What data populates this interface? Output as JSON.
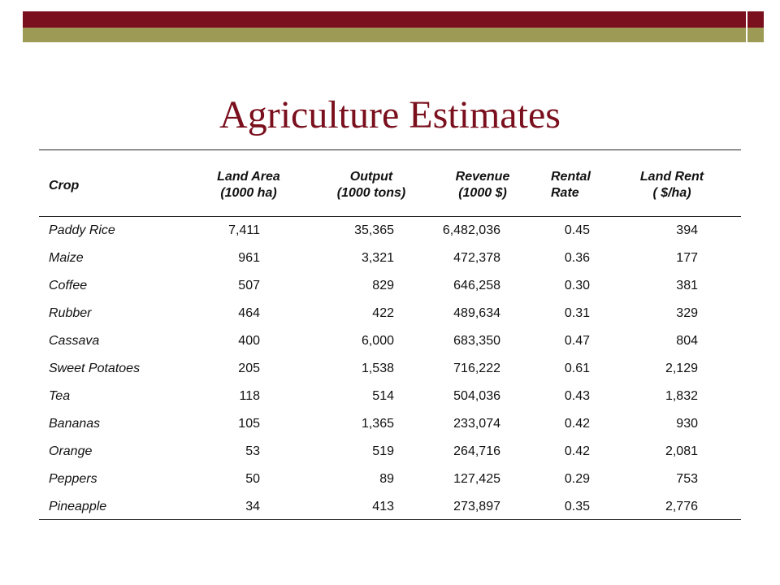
{
  "slide": {
    "title": "Agriculture Estimates",
    "colors": {
      "maroon": "#7a0f1d",
      "olive": "#9c9a55"
    }
  },
  "table": {
    "headers": {
      "crop": "Crop",
      "land_area": [
        "Land Area",
        "(1000 ha)"
      ],
      "output": [
        "Output",
        "(1000 tons)"
      ],
      "revenue": [
        "Revenue",
        "(1000 $)"
      ],
      "rental_rate": [
        "Rental",
        "Rate"
      ],
      "land_rent": [
        "Land Rent",
        "( $/ha)"
      ]
    },
    "rows": [
      {
        "crop": "Paddy Rice",
        "area": "7,411",
        "output": "35,365",
        "revenue": "6,482,036",
        "rate": "0.45",
        "rent": "394"
      },
      {
        "crop": "Maize",
        "area": "961",
        "output": "3,321",
        "revenue": "472,378",
        "rate": "0.36",
        "rent": "177"
      },
      {
        "crop": "Coffee",
        "area": "507",
        "output": "829",
        "revenue": "646,258",
        "rate": "0.30",
        "rent": "381"
      },
      {
        "crop": "Rubber",
        "area": "464",
        "output": "422",
        "revenue": "489,634",
        "rate": "0.31",
        "rent": "329"
      },
      {
        "crop": "Cassava",
        "area": "400",
        "output": "6,000",
        "revenue": "683,350",
        "rate": "0.47",
        "rent": "804"
      },
      {
        "crop": "Sweet Potatoes",
        "area": "205",
        "output": "1,538",
        "revenue": "716,222",
        "rate": "0.61",
        "rent": "2,129"
      },
      {
        "crop": "Tea",
        "area": "118",
        "output": "514",
        "revenue": "504,036",
        "rate": "0.43",
        "rent": "1,832"
      },
      {
        "crop": "Bananas",
        "area": "105",
        "output": "1,365",
        "revenue": "233,074",
        "rate": "0.42",
        "rent": "930"
      },
      {
        "crop": "Orange",
        "area": "53",
        "output": "519",
        "revenue": "264,716",
        "rate": "0.42",
        "rent": "2,081"
      },
      {
        "crop": "Peppers",
        "area": "50",
        "output": "89",
        "revenue": "127,425",
        "rate": "0.29",
        "rent": "753"
      },
      {
        "crop": "Pineapple",
        "area": "34",
        "output": "413",
        "revenue": "273,897",
        "rate": "0.35",
        "rent": "2,776"
      }
    ]
  }
}
